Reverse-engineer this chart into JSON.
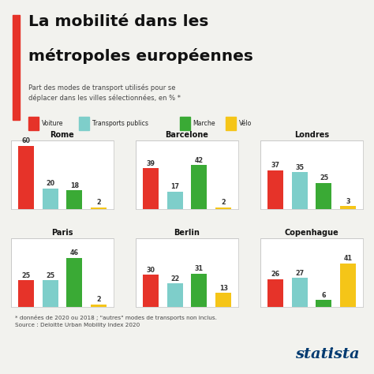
{
  "title_line1": "La mobilité dans les",
  "title_line2": "métropoles européennes",
  "subtitle": "Part des modes de transport utilisés pour se\ndéplacer dans les villes sélectionnées, en % *",
  "footnote": "* données de 2020 ou 2018 ; \"autres\" modes de transports non inclus.\nSource : Deloitte Urban Mobility Index 2020",
  "legend_labels": [
    "Voiture",
    "Transports publics",
    "Marche",
    "Vélo"
  ],
  "legend_colors": [
    "#e63329",
    "#7ececa",
    "#3aaa35",
    "#f5c518"
  ],
  "cities": [
    "Rome",
    "Barcelone",
    "Londres",
    "Paris",
    "Berlin",
    "Copenhague"
  ],
  "values": {
    "Rome": [
      60,
      20,
      18,
      2
    ],
    "Barcelone": [
      39,
      17,
      42,
      2
    ],
    "Londres": [
      37,
      35,
      25,
      3
    ],
    "Paris": [
      25,
      25,
      46,
      2
    ],
    "Berlin": [
      30,
      22,
      31,
      13
    ],
    "Copenhague": [
      26,
      27,
      6,
      41
    ]
  },
  "bar_colors": [
    "#e63329",
    "#7ececa",
    "#3aaa35",
    "#f5c518"
  ],
  "background_color": "#f2f2ee",
  "panel_bg": "#ffffff",
  "title_bar_color": "#e63329",
  "statista_color": "#003a70",
  "y_max": 65
}
